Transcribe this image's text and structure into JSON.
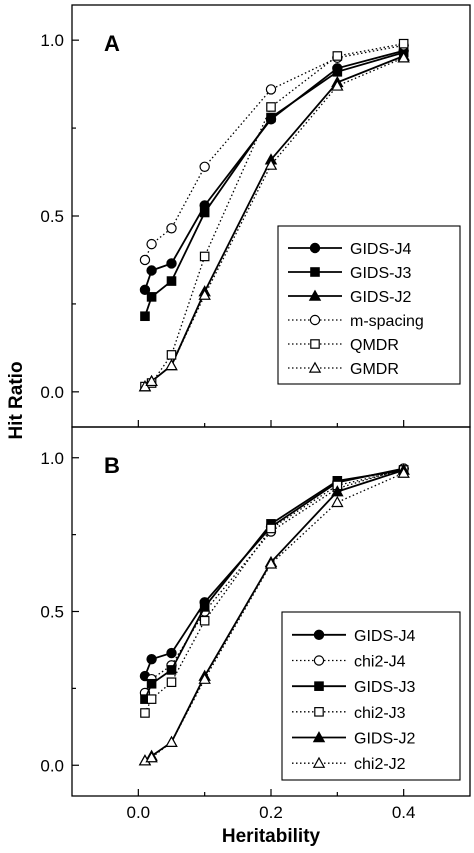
{
  "chart_data": [
    {
      "type": "line",
      "panel_label": "A",
      "xlabel": "Heritability",
      "ylabel": "Hit Ratio",
      "xlim": [
        -0.1,
        0.5
      ],
      "ylim": [
        -0.1,
        1.1
      ],
      "xticks": [
        "0.0",
        "0.2",
        "0.4"
      ],
      "yticks": [
        "0.0",
        "0.5",
        "1.0"
      ],
      "legend_position": "bottom-right",
      "x": [
        0.01,
        0.02,
        0.05,
        0.1,
        0.2,
        0.3,
        0.4
      ],
      "series": [
        {
          "name": "GIDS-J4",
          "marker": "circle",
          "filled": true,
          "style": "solid",
          "values": [
            0.29,
            0.345,
            0.365,
            0.53,
            0.775,
            0.92,
            0.97
          ]
        },
        {
          "name": "GIDS-J3",
          "marker": "square",
          "filled": true,
          "style": "solid",
          "values": [
            0.215,
            0.27,
            0.315,
            0.51,
            0.78,
            0.91,
            0.965
          ]
        },
        {
          "name": "GIDS-J2",
          "marker": "triangle",
          "filled": true,
          "style": "solid",
          "values": [
            0.015,
            0.03,
            0.075,
            0.285,
            0.66,
            0.88,
            0.955
          ]
        },
        {
          "name": "m-spacing",
          "marker": "circle",
          "filled": false,
          "style": "dotted",
          "values": [
            0.375,
            0.42,
            0.465,
            0.64,
            0.86,
            0.95,
            0.985
          ]
        },
        {
          "name": "QMDR",
          "marker": "square",
          "filled": false,
          "style": "dotted",
          "values": [
            0.015,
            0.025,
            0.105,
            0.385,
            0.81,
            0.955,
            0.99
          ]
        },
        {
          "name": "GMDR",
          "marker": "triangle",
          "filled": false,
          "style": "dotted",
          "values": [
            0.015,
            0.03,
            0.075,
            0.275,
            0.645,
            0.87,
            0.95
          ]
        }
      ]
    },
    {
      "type": "line",
      "panel_label": "B",
      "xlabel": "Heritability",
      "ylabel": "Hit Ratio",
      "xlim": [
        -0.1,
        0.5
      ],
      "ylim": [
        -0.1,
        1.1
      ],
      "xticks": [
        "0.0",
        "0.2",
        "0.4"
      ],
      "yticks": [
        "0.0",
        "0.5",
        "1.0"
      ],
      "legend_position": "bottom-right",
      "x": [
        0.01,
        0.02,
        0.05,
        0.1,
        0.2,
        0.3,
        0.4
      ],
      "series": [
        {
          "name": "GIDS-J4",
          "marker": "circle",
          "filled": true,
          "style": "solid",
          "values": [
            0.29,
            0.345,
            0.365,
            0.53,
            0.775,
            0.92,
            0.965
          ]
        },
        {
          "name": "chi2-J4",
          "marker": "circle",
          "filled": false,
          "style": "dotted",
          "values": [
            0.235,
            0.28,
            0.325,
            0.5,
            0.76,
            0.9,
            0.965
          ]
        },
        {
          "name": "GIDS-J3",
          "marker": "square",
          "filled": true,
          "style": "solid",
          "values": [
            0.215,
            0.265,
            0.31,
            0.515,
            0.785,
            0.925,
            0.96
          ]
        },
        {
          "name": "chi2-J3",
          "marker": "square",
          "filled": false,
          "style": "dotted",
          "values": [
            0.17,
            0.215,
            0.27,
            0.47,
            0.77,
            0.91,
            0.96
          ]
        },
        {
          "name": "GIDS-J2",
          "marker": "triangle",
          "filled": true,
          "style": "solid",
          "values": [
            0.015,
            0.03,
            0.075,
            0.29,
            0.66,
            0.89,
            0.96
          ]
        },
        {
          "name": "chi2-J2",
          "marker": "triangle",
          "filled": false,
          "style": "dotted",
          "values": [
            0.015,
            0.025,
            0.075,
            0.28,
            0.655,
            0.855,
            0.95
          ]
        }
      ]
    }
  ]
}
